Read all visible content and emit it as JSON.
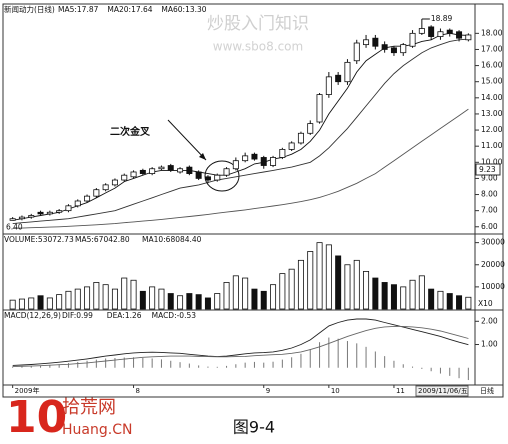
{
  "chart_data": [
    {
      "type": "candlestick",
      "title": "新闻动力(日线)",
      "open": [
        6.4,
        6.5,
        6.6,
        6.9,
        6.8,
        6.9,
        7.0,
        7.3,
        7.6,
        7.9,
        8.3,
        8.6,
        8.9,
        9.1,
        9.5,
        9.3,
        9.6,
        9.8,
        9.4,
        9.7,
        9.4,
        9.1,
        8.9,
        9.2,
        9.6,
        10.1,
        10.5,
        10.3,
        9.8,
        10.3,
        10.8,
        11.2,
        11.8,
        12.5,
        14.2,
        15.4,
        15.0,
        16.3,
        17.3,
        17.7,
        17.3,
        17.1,
        16.8,
        17.2,
        18.0,
        18.4,
        17.8,
        18.2,
        18.1,
        17.6
      ],
      "high": [
        6.6,
        6.7,
        6.8,
        7.0,
        7.0,
        7.1,
        7.4,
        7.7,
        8.0,
        8.4,
        8.7,
        9.0,
        9.3,
        9.5,
        9.6,
        9.7,
        9.8,
        9.9,
        9.7,
        9.8,
        9.5,
        9.2,
        9.3,
        9.7,
        10.3,
        10.6,
        10.6,
        10.4,
        10.4,
        10.9,
        11.3,
        11.9,
        12.6,
        14.3,
        15.6,
        15.6,
        16.4,
        17.6,
        17.9,
        17.9,
        17.5,
        17.2,
        17.4,
        18.2,
        18.89,
        18.5,
        18.3,
        18.3,
        18.2,
        18.0
      ],
      "low": [
        6.4,
        6.4,
        6.5,
        6.7,
        6.7,
        6.8,
        6.9,
        7.2,
        7.5,
        7.8,
        8.2,
        8.5,
        8.8,
        9.0,
        9.2,
        9.2,
        9.5,
        9.4,
        9.3,
        9.2,
        8.9,
        8.7,
        8.8,
        9.1,
        9.5,
        10.0,
        10.1,
        9.6,
        9.7,
        10.2,
        10.7,
        11.1,
        11.7,
        12.4,
        14.0,
        14.8,
        14.8,
        16.1,
        17.1,
        17.0,
        16.8,
        16.6,
        16.6,
        17.1,
        17.9,
        17.6,
        17.6,
        17.8,
        17.5,
        17.5
      ],
      "close": [
        6.5,
        6.6,
        6.7,
        6.8,
        6.9,
        7.0,
        7.3,
        7.6,
        7.9,
        8.3,
        8.6,
        8.9,
        9.2,
        9.4,
        9.3,
        9.6,
        9.7,
        9.5,
        9.6,
        9.3,
        9.0,
        8.9,
        9.2,
        9.6,
        10.1,
        10.4,
        10.2,
        9.8,
        10.3,
        10.8,
        11.2,
        11.8,
        12.4,
        14.2,
        15.3,
        15.0,
        16.2,
        17.4,
        17.6,
        17.2,
        17.0,
        16.8,
        17.3,
        18.0,
        18.3,
        17.8,
        18.1,
        18.0,
        17.7,
        17.9
      ],
      "series": [
        {
          "name": "MA5:17.87",
          "color": "#111111",
          "values": [
            6.4,
            6.5,
            6.6,
            6.7,
            6.8,
            6.9,
            7.1,
            7.3,
            7.5,
            7.8,
            8.1,
            8.4,
            8.8,
            9.0,
            9.2,
            9.4,
            9.5,
            9.5,
            9.5,
            9.5,
            9.4,
            9.3,
            9.2,
            9.2,
            9.4,
            9.6,
            9.9,
            10.0,
            10.2,
            10.3,
            10.5,
            10.8,
            11.3,
            12.0,
            13.0,
            13.8,
            14.6,
            15.6,
            16.3,
            16.7,
            17.1,
            17.2,
            17.2,
            17.3,
            17.5,
            17.6,
            17.9,
            18.0,
            17.9,
            17.87
          ]
        },
        {
          "name": "MA20:17.64",
          "color": "#333333",
          "values": [
            6.2,
            6.25,
            6.3,
            6.35,
            6.4,
            6.45,
            6.5,
            6.6,
            6.7,
            6.8,
            6.9,
            7.0,
            7.2,
            7.4,
            7.6,
            7.8,
            8.0,
            8.2,
            8.4,
            8.5,
            8.6,
            8.75,
            8.9,
            9.0,
            9.1,
            9.2,
            9.3,
            9.4,
            9.5,
            9.6,
            9.7,
            9.85,
            10.0,
            10.4,
            10.9,
            11.5,
            12.1,
            12.8,
            13.5,
            14.2,
            14.9,
            15.5,
            16.0,
            16.4,
            16.8,
            17.1,
            17.3,
            17.5,
            17.6,
            17.64
          ]
        },
        {
          "name": "MA60:13.30",
          "color": "#555555",
          "values": [
            5.9,
            5.92,
            5.94,
            5.96,
            5.98,
            6.0,
            6.03,
            6.06,
            6.09,
            6.12,
            6.16,
            6.2,
            6.25,
            6.3,
            6.35,
            6.4,
            6.46,
            6.52,
            6.58,
            6.64,
            6.7,
            6.77,
            6.84,
            6.91,
            6.98,
            7.05,
            7.13,
            7.21,
            7.29,
            7.37,
            7.46,
            7.56,
            7.68,
            7.82,
            8.0,
            8.2,
            8.45,
            8.7,
            9.0,
            9.3,
            9.7,
            10.1,
            10.5,
            10.9,
            11.3,
            11.7,
            12.1,
            12.5,
            12.9,
            13.3
          ]
        }
      ],
      "ylim": [
        5.8,
        19.2
      ],
      "yticks": [
        {
          "value": 6,
          "label": "6.00"
        },
        {
          "value": 7,
          "label": "7.00"
        },
        {
          "value": 8,
          "label": "8.00"
        },
        {
          "value": 9,
          "label": "9.00"
        },
        {
          "value": 10,
          "label": "10.00"
        },
        {
          "value": 11,
          "label": "11.00"
        },
        {
          "value": 12,
          "label": "12.00"
        },
        {
          "value": 13,
          "label": "13.00"
        },
        {
          "value": 14,
          "label": "14.00"
        },
        {
          "value": 15,
          "label": "15.00"
        },
        {
          "value": 16,
          "label": "16.00"
        },
        {
          "value": 17,
          "label": "17.00"
        },
        {
          "value": 18,
          "label": "18.00"
        }
      ],
      "annotations": {
        "high_label": "18.89",
        "low_label": "6.40",
        "price_tag": "9.23",
        "callout": "二次金叉"
      }
    },
    {
      "type": "bar",
      "title": "VOLUME:53072.73",
      "legend": [
        "MA5:67042.80",
        "MA10:68084.40"
      ],
      "unit": "X10",
      "values": [
        4000,
        4500,
        5000,
        6000,
        5000,
        6500,
        8000,
        9000,
        10000,
        12000,
        11000,
        9000,
        14000,
        13000,
        8000,
        10000,
        9000,
        7000,
        6000,
        7000,
        6500,
        5000,
        7000,
        12000,
        15000,
        14000,
        9000,
        8000,
        11000,
        16000,
        18000,
        22000,
        26000,
        30000,
        29000,
        24000,
        20000,
        22000,
        17000,
        14000,
        12000,
        11000,
        10000,
        13000,
        15000,
        9000,
        8000,
        7000,
        6000,
        5307.273
      ],
      "ylim": [
        0,
        33000
      ],
      "yticks": [
        10000,
        20000,
        30000
      ]
    },
    {
      "type": "macd",
      "title": "MACD(12,26,9)",
      "categories": [
        "2009年",
        null,
        null,
        null,
        null,
        null,
        null,
        null,
        null,
        null,
        null,
        null,
        null,
        "8",
        null,
        null,
        null,
        null,
        null,
        null,
        null,
        null,
        null,
        null,
        null,
        null,
        null,
        "9",
        null,
        null,
        null,
        null,
        null,
        null,
        "10",
        null,
        null,
        null,
        null,
        null,
        null,
        "11",
        null,
        null,
        null,
        null,
        null,
        null,
        null,
        null
      ],
      "series": [
        {
          "name": "DIF:0.99",
          "color": "#222222",
          "values": [
            0.1,
            0.12,
            0.14,
            0.17,
            0.2,
            0.24,
            0.28,
            0.33,
            0.38,
            0.44,
            0.5,
            0.55,
            0.6,
            0.64,
            0.66,
            0.67,
            0.66,
            0.64,
            0.62,
            0.58,
            0.54,
            0.5,
            0.48,
            0.5,
            0.55,
            0.6,
            0.64,
            0.65,
            0.68,
            0.75,
            0.85,
            1.0,
            1.2,
            1.5,
            1.8,
            1.95,
            2.05,
            2.1,
            2.1,
            2.05,
            1.95,
            1.85,
            1.75,
            1.65,
            1.55,
            1.45,
            1.35,
            1.22,
            1.1,
            0.99
          ]
        },
        {
          "name": "DEA:1.26",
          "color": "#666666",
          "values": [
            0.05,
            0.06,
            0.07,
            0.09,
            0.11,
            0.13,
            0.15,
            0.18,
            0.21,
            0.25,
            0.29,
            0.33,
            0.37,
            0.41,
            0.45,
            0.47,
            0.49,
            0.5,
            0.5,
            0.5,
            0.49,
            0.48,
            0.47,
            0.47,
            0.48,
            0.49,
            0.52,
            0.54,
            0.56,
            0.58,
            0.62,
            0.68,
            0.78,
            0.9,
            1.05,
            1.2,
            1.35,
            1.48,
            1.6,
            1.7,
            1.76,
            1.78,
            1.78,
            1.76,
            1.72,
            1.66,
            1.58,
            1.48,
            1.37,
            1.26
          ]
        }
      ],
      "histogram": {
        "name": "MACD:-0.53",
        "color": "#777777",
        "values": [
          0.05,
          0.06,
          0.08,
          0.1,
          0.12,
          0.15,
          0.2,
          0.25,
          0.3,
          0.35,
          0.4,
          0.42,
          0.44,
          0.45,
          0.42,
          0.4,
          0.36,
          0.3,
          0.24,
          0.18,
          0.1,
          0.05,
          0.04,
          0.08,
          0.15,
          0.22,
          0.25,
          0.22,
          0.26,
          0.35,
          0.45,
          0.6,
          0.8,
          1.1,
          1.3,
          1.25,
          1.15,
          1.05,
          0.9,
          0.7,
          0.5,
          0.3,
          0.15,
          0.05,
          -0.05,
          -0.15,
          -0.25,
          -0.35,
          -0.45,
          -0.53
        ]
      },
      "ylim": [
        -0.7,
        2.4
      ],
      "yticks": [
        {
          "value": 1,
          "label": "1.00"
        },
        {
          "value": 2,
          "label": "2.00"
        }
      ]
    }
  ],
  "watermark": {
    "text": "炒股入门知识",
    "url": "www.sbo8.com"
  },
  "cursor_date": "2009/11/06/五",
  "period": "日线",
  "logo": {
    "number": "10",
    "name": "拾荒网",
    "url": "Huang.CN"
  },
  "caption": "图9-4"
}
